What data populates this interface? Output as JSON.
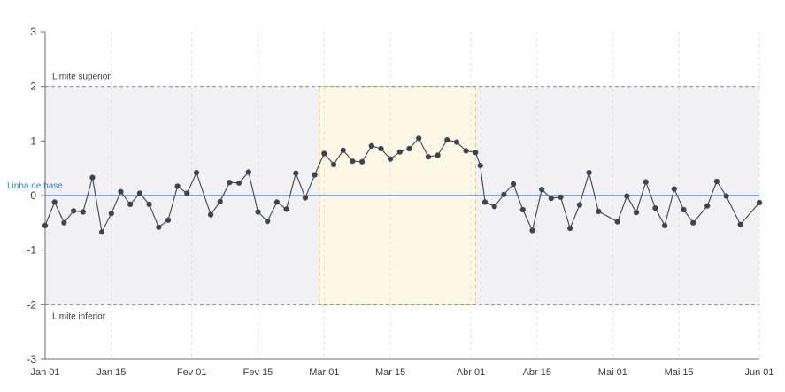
{
  "chart_data": {
    "type": "line",
    "x_axis": {
      "type": "date",
      "range": [
        "2023-01-01",
        "2023-06-01"
      ],
      "ticks": [
        {
          "date": "2023-01-01",
          "label": "Jan 01"
        },
        {
          "date": "2023-01-15",
          "label": "Jan 15"
        },
        {
          "date": "2023-02-01",
          "label": "Fev 01"
        },
        {
          "date": "2023-02-15",
          "label": "Fev 15"
        },
        {
          "date": "2023-03-01",
          "label": "Mar 01"
        },
        {
          "date": "2023-03-15",
          "label": "Mar 15"
        },
        {
          "date": "2023-04-01",
          "label": "Abr 01"
        },
        {
          "date": "2023-04-15",
          "label": "Abr 15"
        },
        {
          "date": "2023-05-01",
          "label": "Mai 01"
        },
        {
          "date": "2023-05-15",
          "label": "Mai 15"
        },
        {
          "date": "2023-06-01",
          "label": "Jun 01"
        }
      ]
    },
    "y_axis": {
      "range": [
        -3,
        3
      ],
      "ticks": [
        -3,
        -2,
        -1,
        0,
        1,
        2,
        3
      ],
      "tick_labels": [
        "-3",
        "-2",
        "-1",
        "0",
        "1",
        "2",
        "3"
      ]
    },
    "grid": {
      "vertical": true,
      "horizontal": false
    },
    "control_band": {
      "upper": 2,
      "lower": -2,
      "fill": "#f1f1f3"
    },
    "upper_limit": {
      "value": 2,
      "label": "Limite superior"
    },
    "lower_limit": {
      "value": -2,
      "label": "Limite inferior"
    },
    "baseline": {
      "value": 0,
      "label": "Linha de base",
      "color": "#2f7fd0"
    },
    "highlight_region": {
      "start": "2023-02-28",
      "end": "2023-04-02",
      "fill": "#fdf8e6",
      "border": "#f0c96a"
    },
    "series_color": "#3f4350",
    "points": [
      {
        "x": "2023-01-01",
        "y": -0.55
      },
      {
        "x": "2023-01-03",
        "y": -0.12
      },
      {
        "x": "2023-01-05",
        "y": -0.5
      },
      {
        "x": "2023-01-07",
        "y": -0.28
      },
      {
        "x": "2023-01-09",
        "y": -0.3
      },
      {
        "x": "2023-01-11",
        "y": 0.33
      },
      {
        "x": "2023-01-13",
        "y": -0.67
      },
      {
        "x": "2023-01-15",
        "y": -0.33
      },
      {
        "x": "2023-01-17",
        "y": 0.07
      },
      {
        "x": "2023-01-19",
        "y": -0.16
      },
      {
        "x": "2023-01-21",
        "y": 0.04
      },
      {
        "x": "2023-01-23",
        "y": -0.16
      },
      {
        "x": "2023-01-25",
        "y": -0.58
      },
      {
        "x": "2023-01-27",
        "y": -0.45
      },
      {
        "x": "2023-01-29",
        "y": 0.17
      },
      {
        "x": "2023-01-31",
        "y": 0.04
      },
      {
        "x": "2023-02-02",
        "y": 0.42
      },
      {
        "x": "2023-02-05",
        "y": -0.35
      },
      {
        "x": "2023-02-07",
        "y": -0.11
      },
      {
        "x": "2023-02-09",
        "y": 0.24
      },
      {
        "x": "2023-02-11",
        "y": 0.23
      },
      {
        "x": "2023-02-13",
        "y": 0.43
      },
      {
        "x": "2023-02-15",
        "y": -0.3
      },
      {
        "x": "2023-02-17",
        "y": -0.47
      },
      {
        "x": "2023-02-19",
        "y": -0.12
      },
      {
        "x": "2023-02-21",
        "y": -0.25
      },
      {
        "x": "2023-02-23",
        "y": 0.41
      },
      {
        "x": "2023-02-25",
        "y": -0.04
      },
      {
        "x": "2023-02-27",
        "y": 0.38
      },
      {
        "x": "2023-03-01",
        "y": 0.77
      },
      {
        "x": "2023-03-03",
        "y": 0.57
      },
      {
        "x": "2023-03-05",
        "y": 0.83
      },
      {
        "x": "2023-03-07",
        "y": 0.63
      },
      {
        "x": "2023-03-09",
        "y": 0.62
      },
      {
        "x": "2023-03-11",
        "y": 0.91
      },
      {
        "x": "2023-03-13",
        "y": 0.86
      },
      {
        "x": "2023-03-15",
        "y": 0.67
      },
      {
        "x": "2023-03-17",
        "y": 0.8
      },
      {
        "x": "2023-03-19",
        "y": 0.86
      },
      {
        "x": "2023-03-21",
        "y": 1.05
      },
      {
        "x": "2023-03-23",
        "y": 0.71
      },
      {
        "x": "2023-03-25",
        "y": 0.74
      },
      {
        "x": "2023-03-27",
        "y": 1.02
      },
      {
        "x": "2023-03-29",
        "y": 0.98
      },
      {
        "x": "2023-03-31",
        "y": 0.82
      },
      {
        "x": "2023-04-02",
        "y": 0.79
      },
      {
        "x": "2023-04-03",
        "y": 0.55
      },
      {
        "x": "2023-04-04",
        "y": -0.12
      },
      {
        "x": "2023-04-06",
        "y": -0.2
      },
      {
        "x": "2023-04-08",
        "y": 0.02
      },
      {
        "x": "2023-04-10",
        "y": 0.21
      },
      {
        "x": "2023-04-12",
        "y": -0.26
      },
      {
        "x": "2023-04-14",
        "y": -0.64
      },
      {
        "x": "2023-04-16",
        "y": 0.11
      },
      {
        "x": "2023-04-18",
        "y": -0.05
      },
      {
        "x": "2023-04-20",
        "y": -0.03
      },
      {
        "x": "2023-04-22",
        "y": -0.6
      },
      {
        "x": "2023-04-24",
        "y": -0.17
      },
      {
        "x": "2023-04-26",
        "y": 0.42
      },
      {
        "x": "2023-04-28",
        "y": -0.29
      },
      {
        "x": "2023-05-02",
        "y": -0.48
      },
      {
        "x": "2023-05-04",
        "y": -0.01
      },
      {
        "x": "2023-05-06",
        "y": -0.31
      },
      {
        "x": "2023-05-08",
        "y": 0.25
      },
      {
        "x": "2023-05-10",
        "y": -0.23
      },
      {
        "x": "2023-05-12",
        "y": -0.55
      },
      {
        "x": "2023-05-14",
        "y": 0.12
      },
      {
        "x": "2023-05-16",
        "y": -0.26
      },
      {
        "x": "2023-05-18",
        "y": -0.5
      },
      {
        "x": "2023-05-21",
        "y": -0.19
      },
      {
        "x": "2023-05-23",
        "y": 0.26
      },
      {
        "x": "2023-05-25",
        "y": -0.01
      },
      {
        "x": "2023-05-28",
        "y": -0.53
      },
      {
        "x": "2023-06-01",
        "y": -0.13
      }
    ]
  }
}
